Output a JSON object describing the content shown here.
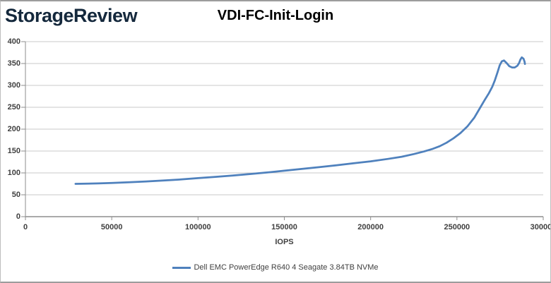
{
  "branding": {
    "logo_text": "StorageReview"
  },
  "chart_data": {
    "type": "line",
    "title": "VDI-FC-Init-Login",
    "xlabel": "IOPS",
    "ylabel": "",
    "xlim": [
      0,
      300000
    ],
    "ylim": [
      0,
      400
    ],
    "x_ticks": [
      0,
      50000,
      100000,
      150000,
      200000,
      250000,
      300000
    ],
    "y_ticks": [
      0,
      50,
      100,
      150,
      200,
      250,
      300,
      350,
      400
    ],
    "grid": "horizontal",
    "legend_position": "bottom",
    "series": [
      {
        "name": "Dell EMC PowerEdge R640 4 Seagate 3.84TB NVMe",
        "color": "#4F81BD",
        "points": [
          [
            29000,
            75
          ],
          [
            35000,
            75.5
          ],
          [
            42000,
            76
          ],
          [
            50000,
            77
          ],
          [
            60000,
            78.5
          ],
          [
            70000,
            80.5
          ],
          [
            80000,
            82.5
          ],
          [
            90000,
            85
          ],
          [
            100000,
            88
          ],
          [
            110000,
            91
          ],
          [
            120000,
            94
          ],
          [
            130000,
            97.5
          ],
          [
            140000,
            101
          ],
          [
            150000,
            105
          ],
          [
            160000,
            109
          ],
          [
            170000,
            113
          ],
          [
            180000,
            117.5
          ],
          [
            190000,
            122
          ],
          [
            200000,
            126.5
          ],
          [
            210000,
            132
          ],
          [
            218000,
            137
          ],
          [
            225000,
            143
          ],
          [
            231000,
            149
          ],
          [
            236000,
            155
          ],
          [
            240000,
            161
          ],
          [
            244000,
            169
          ],
          [
            248000,
            179
          ],
          [
            252000,
            191
          ],
          [
            256000,
            206
          ],
          [
            260000,
            226
          ],
          [
            263000,
            246
          ],
          [
            266000,
            266
          ],
          [
            268500,
            282
          ],
          [
            270500,
            297
          ],
          [
            272000,
            312
          ],
          [
            273500,
            330
          ],
          [
            274800,
            346
          ],
          [
            276000,
            355
          ],
          [
            277300,
            357
          ],
          [
            278800,
            351
          ],
          [
            280300,
            344
          ],
          [
            282000,
            341
          ],
          [
            283500,
            341
          ],
          [
            285000,
            345
          ],
          [
            286000,
            351
          ],
          [
            286800,
            359
          ],
          [
            287600,
            364
          ],
          [
            288600,
            361
          ],
          [
            289200,
            354
          ],
          [
            289400,
            349
          ]
        ]
      }
    ]
  },
  "colors": {
    "gridline": "#c8c8c8",
    "axis": "#8e8e8e",
    "tick_label": "#404040",
    "series_line": "#4F81BD",
    "logo": "#14283c"
  }
}
